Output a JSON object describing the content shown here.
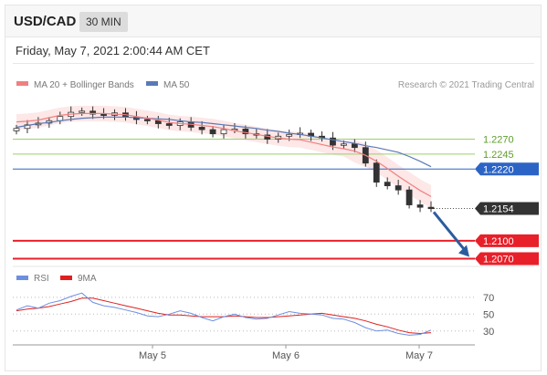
{
  "header": {
    "symbol": "USD/CAD",
    "timeframe": "30 MIN"
  },
  "datetime": "Friday, May 7, 2021 2:00:44 AM CET",
  "legend": {
    "ma20": "MA 20 + Bollinger Bands",
    "ma50": "MA 50",
    "credit": "Research © 2021 Trading Central",
    "rsi": "RSI",
    "ma9": "9MA"
  },
  "colors": {
    "ma20": "#f08080",
    "band_fill": "#fbd3d3",
    "ma50": "#5a79b8",
    "candle": "#333333",
    "resistance": "#9bcf6a",
    "pivot": "#2c64c6",
    "support": "#e8202a",
    "price": "#333333",
    "arrow": "#2c5c9e",
    "rsi": "#6d8fe0",
    "rsi_ma": "#e02020"
  },
  "chart_data": [
    {
      "type": "line",
      "title": "USD/CAD 30 MIN",
      "x_ticks": [
        "May 5",
        "May 6",
        "May 7"
      ],
      "series": [
        {
          "name": "MA 20 + Bollinger Bands",
          "values": [
            1.2299,
            1.23,
            1.2302,
            1.2306,
            1.231,
            1.2312,
            1.2313,
            1.2313,
            1.2313,
            1.2312,
            1.2311,
            1.2308,
            1.2305,
            1.2302,
            1.2298,
            1.2296,
            1.2295,
            1.2293,
            1.2291,
            1.2288,
            1.2284,
            1.2281,
            1.2278,
            1.2275,
            1.2272,
            1.227,
            1.2269,
            1.2265,
            1.2261,
            1.2257,
            1.2254,
            1.225,
            1.2243,
            1.2233,
            1.2221,
            1.2208,
            1.2196,
            1.2184,
            1.2174
          ]
        },
        {
          "name": "MA 50",
          "values": [
            1.229,
            1.2293,
            1.2296,
            1.2298,
            1.2301,
            1.2303,
            1.2305,
            1.2306,
            1.2307,
            1.2307,
            1.2307,
            1.2306,
            1.2305,
            1.2304,
            1.2303,
            1.2301,
            1.2299,
            1.2298,
            1.2296,
            1.2294,
            1.2292,
            1.229,
            1.2288,
            1.2285,
            1.2283,
            1.228,
            1.2278,
            1.2275,
            1.2272,
            1.2269,
            1.2266,
            1.2263,
            1.2259,
            1.2256,
            1.2252,
            1.2248,
            1.2241,
            1.2233,
            1.2224
          ]
        },
        {
          "name": "Close",
          "values": [
            1.2288,
            1.2294,
            1.2297,
            1.2301,
            1.2308,
            1.2315,
            1.2317,
            1.2312,
            1.231,
            1.2314,
            1.2307,
            1.2303,
            1.2301,
            1.2296,
            1.2293,
            1.2299,
            1.229,
            1.2286,
            1.2279,
            1.2286,
            1.2287,
            1.2279,
            1.2277,
            1.227,
            1.2275,
            1.2278,
            1.228,
            1.2275,
            1.2272,
            1.226,
            1.2262,
            1.2256,
            1.223,
            1.2198,
            1.2192,
            1.2185,
            1.216,
            1.2156,
            1.2154
          ]
        }
      ],
      "levels": [
        {
          "label": "1.2270",
          "value": 1.227,
          "role": "resistance"
        },
        {
          "label": "1.2245",
          "value": 1.2245,
          "role": "resistance"
        },
        {
          "label": "1.2220",
          "value": 1.222,
          "role": "pivot"
        },
        {
          "label": "1.2154",
          "value": 1.2154,
          "role": "price"
        },
        {
          "label": "1.2100",
          "value": 1.21,
          "role": "support"
        },
        {
          "label": "1.2070",
          "value": 1.207,
          "role": "support"
        }
      ]
    },
    {
      "type": "line",
      "title": "RSI",
      "x_ticks": [
        "May 5",
        "May 6",
        "May 7"
      ],
      "y_ticks": [
        "70",
        "50",
        "30"
      ],
      "ylim": [
        20,
        85
      ],
      "series": [
        {
          "name": "RSI",
          "values": [
            55,
            60,
            57,
            63,
            66,
            71,
            75,
            64,
            60,
            58,
            55,
            52,
            48,
            47,
            50,
            54,
            51,
            46,
            42,
            47,
            50,
            46,
            44,
            45,
            49,
            53,
            51,
            50,
            49,
            45,
            44,
            40,
            34,
            30,
            31,
            27,
            25,
            26,
            31
          ]
        },
        {
          "name": "9MA",
          "values": [
            54,
            56,
            57,
            59,
            62,
            65,
            69,
            69,
            66,
            63,
            60,
            57,
            54,
            51,
            49,
            49,
            48,
            47,
            47,
            47,
            48,
            47,
            46,
            46,
            47,
            48,
            49,
            50,
            51,
            49,
            47,
            45,
            42,
            38,
            35,
            31,
            28,
            27,
            28
          ]
        }
      ]
    }
  ]
}
